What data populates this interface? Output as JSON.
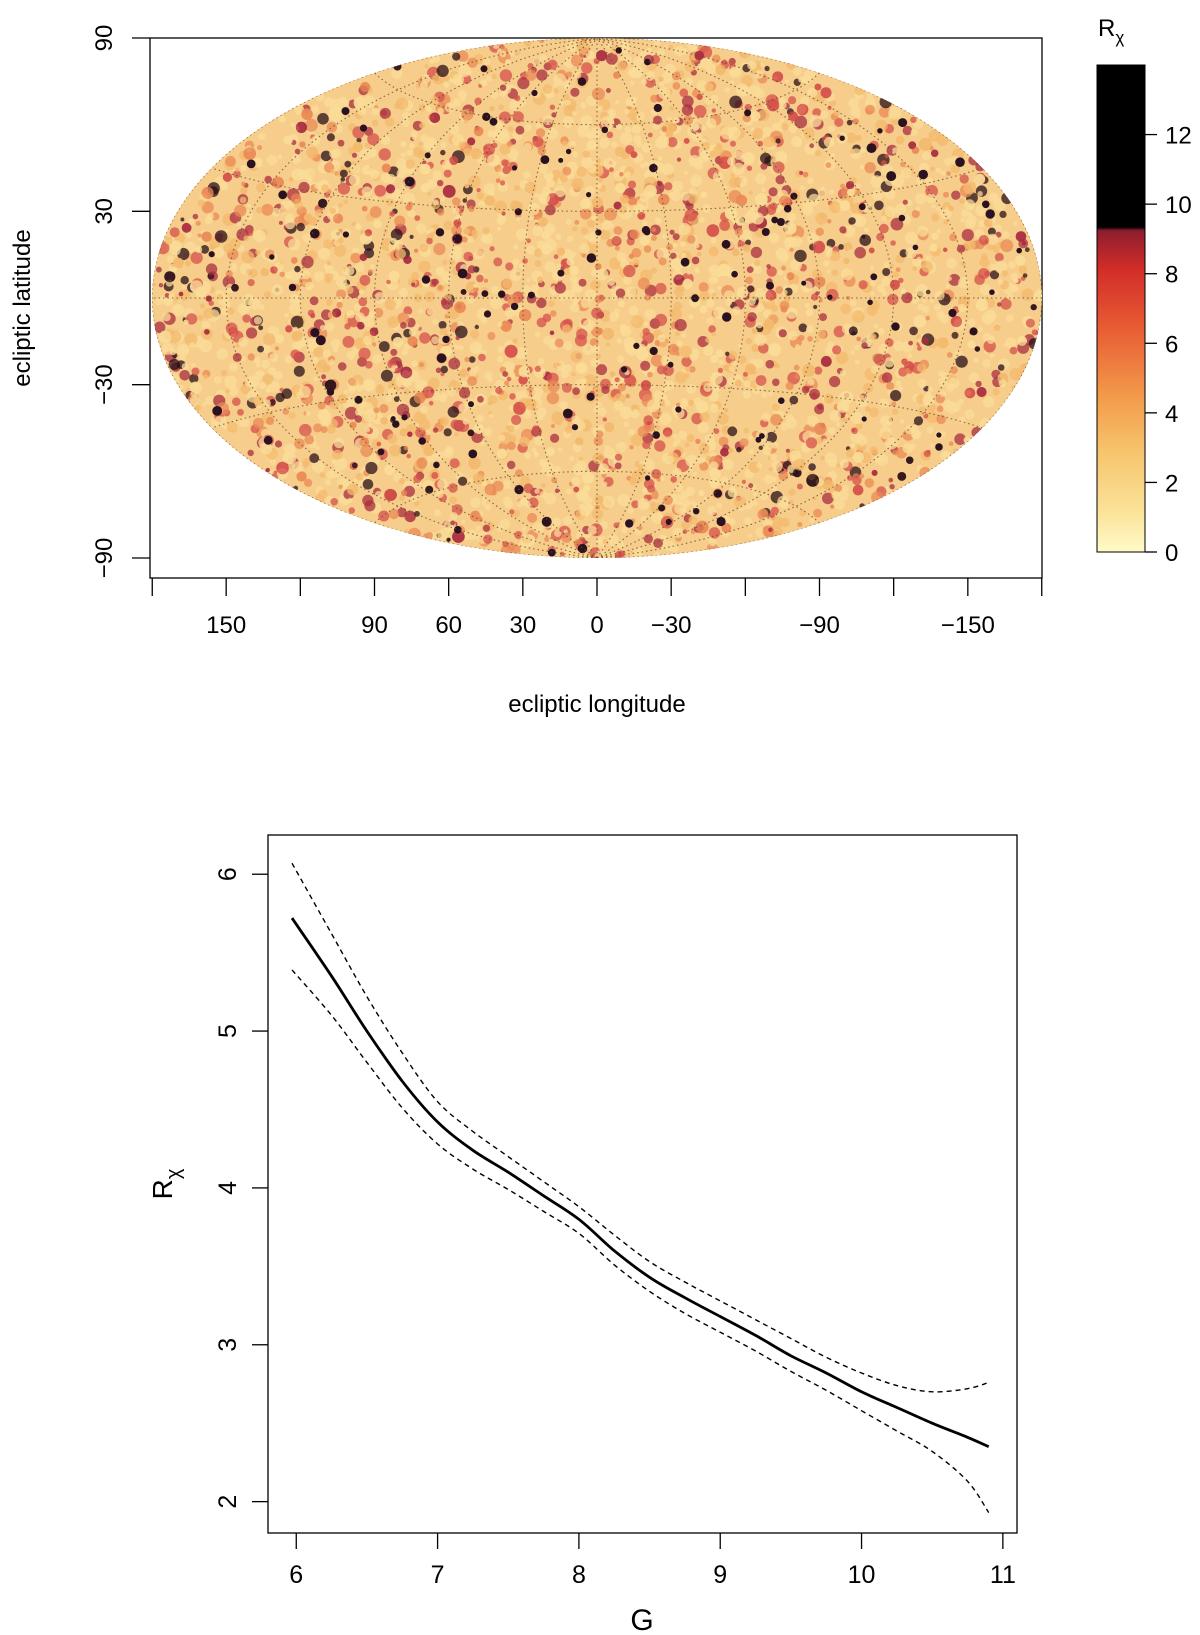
{
  "chart_data": [
    {
      "type": "heatmap",
      "projection": "aitoff",
      "xlabel": "ecliptic longitude",
      "ylabel": "ecliptic latitude",
      "xticks": [
        150,
        90,
        60,
        30,
        0,
        -30,
        -90,
        -150
      ],
      "xtick_labels": [
        "150",
        "90",
        "60",
        "30",
        "0",
        "−30",
        "−90",
        "−150"
      ],
      "yticks": [
        90,
        30,
        -30,
        -90
      ],
      "ytick_labels": [
        "90",
        "30",
        "−30",
        "−90"
      ],
      "colorbar": {
        "title_main": "R",
        "title_sub": "χ",
        "range": [
          0,
          14
        ],
        "ticks": [
          0,
          2,
          4,
          6,
          8,
          10,
          12
        ],
        "tick_labels": [
          "0",
          "2",
          "4",
          "6",
          "8",
          "10",
          "12"
        ],
        "colors": [
          "#fffbc8",
          "#fbe39a",
          "#f7c66e",
          "#f29a4a",
          "#e85c34",
          "#d32d28",
          "#8c1e2e",
          "#000000"
        ]
      },
      "grid": true
    },
    {
      "type": "line",
      "xlabel": "G",
      "ylabel_main": "R",
      "ylabel_sub": "χ",
      "xlim": [
        5.8,
        11.1
      ],
      "ylim": [
        1.8,
        6.25
      ],
      "xticks": [
        6,
        7,
        8,
        9,
        10,
        11
      ],
      "xtick_labels": [
        "6",
        "7",
        "8",
        "9",
        "10",
        "11"
      ],
      "yticks": [
        2,
        3,
        4,
        5,
        6
      ],
      "ytick_labels": [
        "2",
        "3",
        "4",
        "5",
        "6"
      ],
      "series": [
        {
          "style": "solid",
          "x": [
            5.97,
            6.25,
            6.5,
            6.75,
            7.0,
            7.25,
            7.5,
            7.75,
            8.0,
            8.25,
            8.5,
            8.75,
            9.0,
            9.25,
            9.5,
            9.75,
            10.0,
            10.25,
            10.5,
            10.75,
            10.9
          ],
          "y": [
            5.72,
            5.35,
            5.0,
            4.68,
            4.42,
            4.24,
            4.1,
            3.95,
            3.8,
            3.6,
            3.43,
            3.3,
            3.18,
            3.06,
            2.93,
            2.82,
            2.7,
            2.6,
            2.5,
            2.41,
            2.35
          ]
        },
        {
          "style": "dashed",
          "x": [
            5.97,
            6.25,
            6.5,
            6.75,
            7.0,
            7.25,
            7.5,
            7.75,
            8.0,
            8.25,
            8.5,
            8.75,
            9.0,
            9.25,
            9.5,
            9.75,
            10.0,
            10.25,
            10.5,
            10.75,
            10.9
          ],
          "y": [
            6.07,
            5.62,
            5.22,
            4.86,
            4.55,
            4.36,
            4.2,
            4.04,
            3.88,
            3.7,
            3.53,
            3.4,
            3.28,
            3.16,
            3.04,
            2.92,
            2.82,
            2.74,
            2.7,
            2.72,
            2.76
          ]
        },
        {
          "style": "dashed",
          "x": [
            5.97,
            6.25,
            6.5,
            6.75,
            7.0,
            7.25,
            7.5,
            7.75,
            8.0,
            8.25,
            8.5,
            8.75,
            9.0,
            9.25,
            9.5,
            9.75,
            10.0,
            10.25,
            10.5,
            10.75,
            10.9
          ],
          "y": [
            5.39,
            5.1,
            4.8,
            4.51,
            4.28,
            4.12,
            3.99,
            3.85,
            3.71,
            3.51,
            3.34,
            3.2,
            3.08,
            2.96,
            2.83,
            2.71,
            2.58,
            2.45,
            2.32,
            2.13,
            1.93
          ]
        }
      ]
    }
  ]
}
